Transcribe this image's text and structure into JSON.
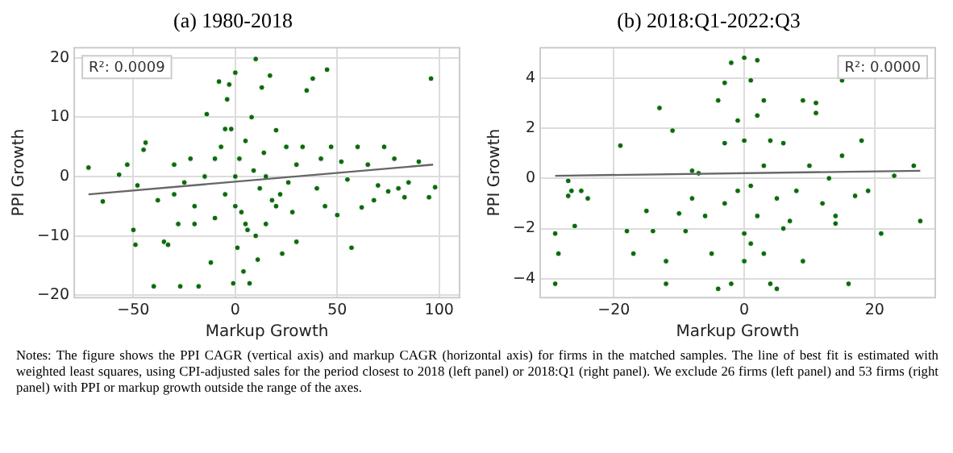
{
  "chart_data": [
    {
      "type": "scatter",
      "title": "(a) 1980-2018",
      "xlabel": "Markup Growth",
      "ylabel": "PPI Growth",
      "annotations": [
        "R²: 0.0009",
        "Notes: The figure shows the PPI CAGR (vertical axis) and markup CAGR (horizontal axis) for firms in the matched samples. The line of best fit is estimated with weighted least squares, using CPI-adjusted sales for the period closest to 2018 (left panel) or 2018:Q1 (right panel). We exclude 26 firms (left panel) and 53 firms (right panel) with PPI or markup growth outside the range of the axes."
      ],
      "xlim": [
        -79,
        110
      ],
      "ylim": [
        -20.4,
        21.7
      ],
      "xticks": [
        {
          "value": -50,
          "label": "−50"
        },
        0,
        50,
        100
      ],
      "yticks": [
        {
          "value": -20,
          "label": "−20"
        },
        {
          "value": -10,
          "label": "−10"
        },
        0,
        10,
        20
      ],
      "grid": true,
      "marker": "circle",
      "series": [
        {
          "color": "#0b6b0b",
          "x": [
            -72,
            -65,
            -57,
            -53,
            -50,
            -49,
            -48,
            -45,
            -44,
            -40,
            -38,
            -35,
            -33,
            -30,
            -28,
            -27,
            -25,
            -22,
            -20,
            -18,
            -15,
            -14,
            -12,
            -10,
            -8,
            -7,
            -5,
            -4,
            -3,
            -2,
            -1,
            0,
            0,
            1,
            2,
            3,
            4,
            5,
            6,
            7,
            8,
            9,
            10,
            11,
            12,
            13,
            14,
            15,
            17,
            18,
            20,
            22,
            23,
            25,
            26,
            28,
            30,
            33,
            35,
            38,
            40,
            42,
            44,
            45,
            47,
            50,
            52,
            55,
            57,
            60,
            62,
            65,
            68,
            70,
            73,
            75,
            78,
            80,
            83,
            85,
            90,
            95,
            96,
            98,
            -20,
            -10,
            10,
            20,
            -30,
            30,
            0,
            5,
            -5,
            15
          ],
          "values": [
            1.5,
            -4.2,
            0.3,
            2,
            -9,
            -11.5,
            -1.5,
            4.5,
            5.7,
            -18.5,
            -4,
            -11,
            -11.5,
            2,
            -8,
            -18.5,
            -1,
            3,
            -5,
            -18.5,
            0,
            10.5,
            -14.5,
            -7,
            16,
            5,
            -3,
            13,
            15.5,
            8,
            -18,
            17.5,
            0,
            -12,
            3,
            -6,
            -16,
            6,
            -9,
            -18,
            10,
            1,
            19.8,
            -14,
            -2,
            15,
            4,
            -8,
            17,
            -4,
            7.8,
            -3,
            -13,
            5,
            -1,
            -6,
            -11,
            5,
            14.5,
            16.5,
            -2,
            3,
            -5,
            18,
            5,
            -6.5,
            2.5,
            -0.5,
            -12,
            5,
            -5.2,
            2,
            -4,
            -1.5,
            5,
            -2.5,
            3,
            -2,
            -3.5,
            -1,
            2.5,
            -3.5,
            16.5,
            -1.8,
            -8,
            3,
            -10,
            -5,
            -3,
            2,
            -5,
            -8,
            8,
            0
          ]
        },
        {
          "type": "line",
          "color": "#666666",
          "marker": "none",
          "x": [
            -72,
            97
          ],
          "values": [
            -3,
            2
          ]
        }
      ]
    },
    {
      "type": "scatter",
      "title": "(b) 2018:Q1-2022:Q3",
      "xlabel": "Markup Growth",
      "ylabel": "PPI Growth",
      "annotations": [
        "R²: 0.0000"
      ],
      "xlim": [
        -31.3,
        29.3
      ],
      "ylim": [
        -4.75,
        5.2
      ],
      "xticks": [
        {
          "value": -20,
          "label": "−20"
        },
        0,
        20
      ],
      "yticks": [
        {
          "value": -4,
          "label": "−4"
        },
        {
          "value": -2,
          "label": "−2"
        },
        0,
        2,
        4
      ],
      "grid": true,
      "marker": "circle",
      "series": [
        {
          "color": "#0b6b0b",
          "x": [
            -29,
            -29,
            -28.5,
            -27,
            -27,
            -26.5,
            -26,
            -25,
            -24,
            -19,
            -18,
            -17,
            -15,
            -14,
            -13,
            -12,
            -12,
            -11,
            -10,
            -9,
            -8,
            -7,
            -6,
            -5,
            -4,
            -4,
            -3,
            -3,
            -2,
            -2,
            -1,
            -1,
            0,
            0,
            0,
            0,
            1,
            1,
            1,
            2,
            2,
            2,
            3,
            3,
            4,
            4,
            5,
            5,
            6,
            7,
            8,
            9,
            9,
            10,
            11,
            11,
            12,
            13,
            14,
            14,
            15,
            15,
            16,
            17,
            18,
            19,
            21,
            23,
            26,
            27,
            -8,
            6,
            -3,
            3
          ],
          "values": [
            -4.2,
            -2.2,
            -3,
            -0.1,
            -0.7,
            -0.5,
            -1.9,
            -0.5,
            -0.8,
            1.3,
            -2.1,
            -3,
            -1.3,
            -2.1,
            2.8,
            -4.2,
            -3.3,
            1.9,
            -1.4,
            -2.1,
            -0.8,
            0.2,
            -1.5,
            -3,
            3.1,
            -4.4,
            3.8,
            -1,
            4.6,
            -4.2,
            2.3,
            -0.5,
            4.8,
            1.5,
            -2.2,
            -3.3,
            3.9,
            -0.3,
            -2.6,
            4.7,
            2.5,
            -1.5,
            0.5,
            -3,
            -4.2,
            1.5,
            -0.8,
            -4.4,
            1.4,
            -1.7,
            -0.5,
            3.1,
            -3.3,
            0.5,
            3,
            2.6,
            -1,
            0,
            -1.5,
            -1.8,
            3.9,
            0.9,
            -4.2,
            -0.7,
            1.5,
            -0.5,
            -2.2,
            0.1,
            0.5,
            -1.7,
            0.3,
            -2,
            1.4,
            3.1
          ]
        },
        {
          "type": "line",
          "color": "#666666",
          "marker": "none",
          "x": [
            -29,
            27
          ],
          "values": [
            0.1,
            0.3
          ]
        }
      ]
    }
  ]
}
